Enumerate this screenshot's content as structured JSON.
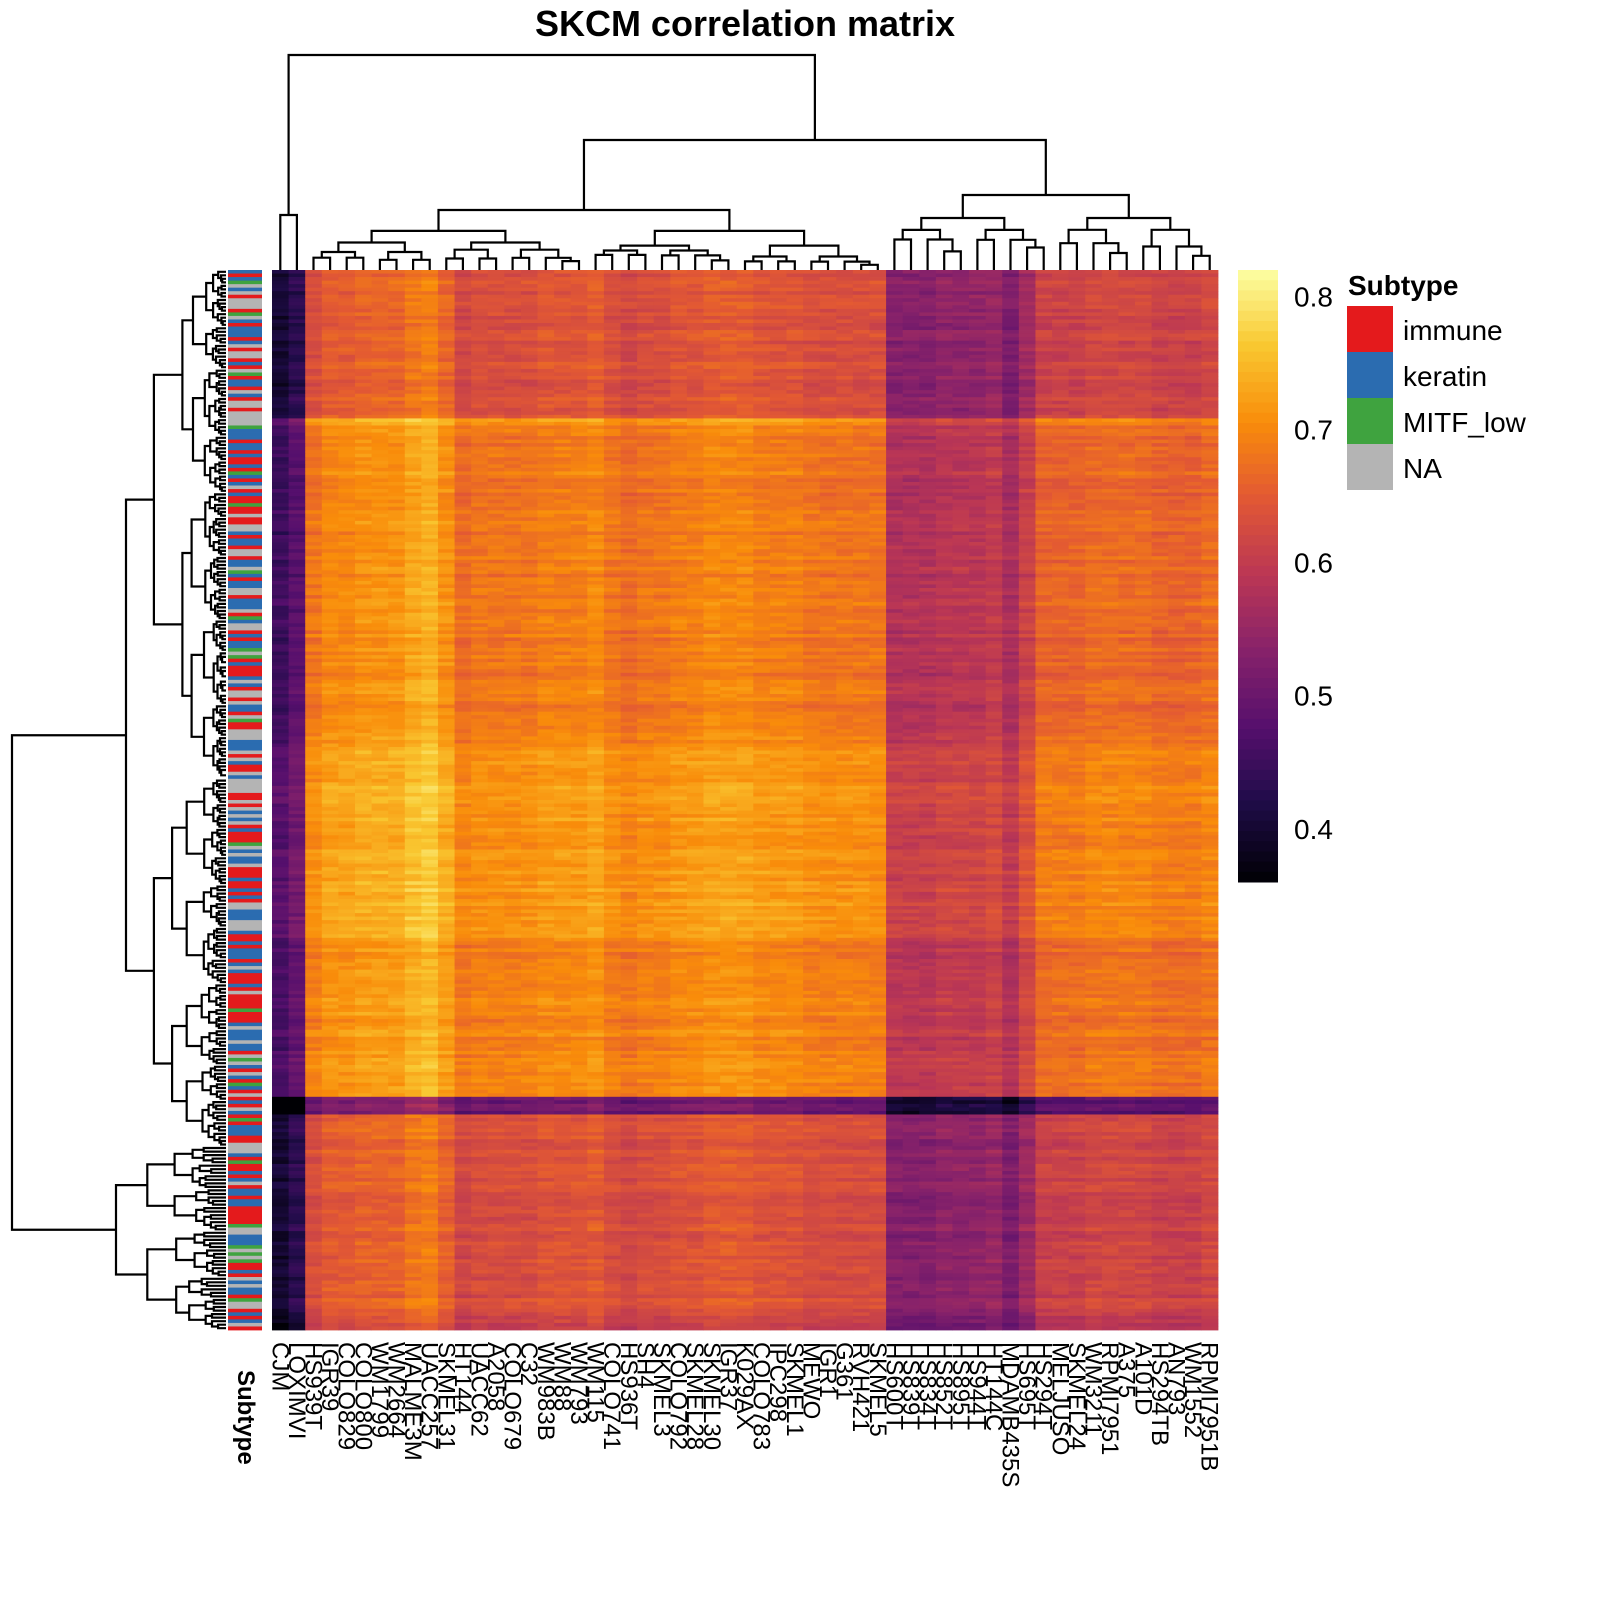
{
  "chart_data": {
    "type": "heatmap",
    "title": "SKCM  correlation matrix",
    "columns": [
      "CJM",
      "LOXIMVI",
      "HS939T",
      "IGR39",
      "COLO829",
      "COLO800",
      "WM1799",
      "WM2664",
      "MALME3M",
      "UACC257",
      "SKMEL31",
      "HT144",
      "UACC62",
      "A2058",
      "COLO679",
      "C32",
      "WM983B",
      "WM88",
      "WM793",
      "WM115",
      "COLO741",
      "HS936T",
      "SH4",
      "SKMEL3",
      "COLO792",
      "SKMEL28",
      "SKMEL30",
      "IGR37",
      "K029AX",
      "COLO783",
      "IPC298",
      "SKMEL1",
      "MEWO",
      "IGR1",
      "G361",
      "RVH421",
      "SKMEL5",
      "HS600T",
      "HS839T",
      "HS834T",
      "HS852T",
      "HS895T",
      "HS944T",
      "HT144C",
      "MDAMB435S",
      "HS695T",
      "HS294T",
      "MELJUSO",
      "SKMEL24",
      "WM3211",
      "RPMI7951",
      "A375",
      "A101D",
      "HS294TB",
      "AN793",
      "WM1552",
      "RPMI7951B"
    ],
    "values_summary": "estimated per-column mean correlation",
    "column_means": [
      0.45,
      0.48,
      0.68,
      0.7,
      0.7,
      0.71,
      0.71,
      0.71,
      0.73,
      0.74,
      0.71,
      0.67,
      0.68,
      0.68,
      0.68,
      0.68,
      0.69,
      0.69,
      0.69,
      0.7,
      0.68,
      0.67,
      0.68,
      0.68,
      0.69,
      0.69,
      0.7,
      0.7,
      0.7,
      0.69,
      0.69,
      0.69,
      0.68,
      0.68,
      0.68,
      0.68,
      0.68,
      0.58,
      0.58,
      0.58,
      0.59,
      0.59,
      0.59,
      0.6,
      0.57,
      0.61,
      0.66,
      0.66,
      0.66,
      0.67,
      0.67,
      0.67,
      0.67,
      0.66,
      0.66,
      0.66,
      0.67
    ],
    "row_count": 300,
    "colorbar": {
      "ticks": [
        0.4,
        0.5,
        0.6,
        0.7,
        0.8
      ],
      "range": [
        0.36,
        0.82
      ],
      "palette": "inferno"
    },
    "annotation": {
      "label": "Subtype",
      "legend_title": "Subtype",
      "categories": [
        {
          "name": "immune",
          "color": "#e41a1c"
        },
        {
          "name": "keratin",
          "color": "#2b6cb0"
        },
        {
          "name": "MITF_low",
          "color": "#3fa33f"
        },
        {
          "name": "NA",
          "color": "#b4b4b4"
        }
      ]
    },
    "legend": "right"
  }
}
